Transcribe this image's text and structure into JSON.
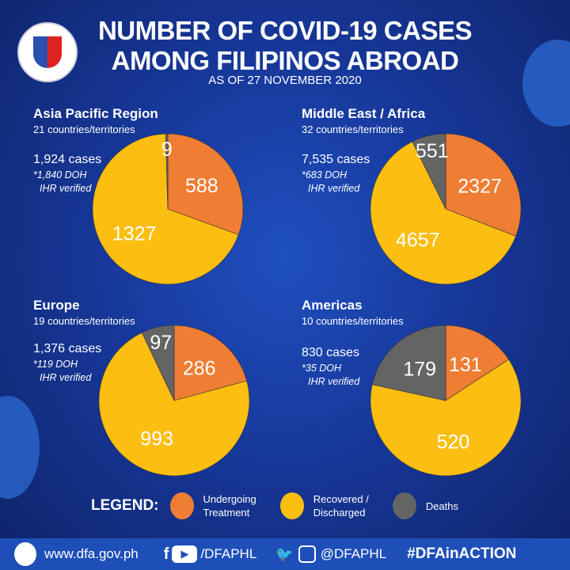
{
  "header": {
    "title_line1": "NUMBER OF  COVID-19 CASES",
    "title_line2": "AMONG FILIPINOS ABROAD",
    "subtitle": "AS OF 27 NOVEMBER 2020"
  },
  "colors": {
    "undergoing": "#ef7d33",
    "recovered": "#fdbe12",
    "deaths": "#646464"
  },
  "chart_data": [
    {
      "type": "pie",
      "title": "Asia Pacific Region",
      "subtitle": "21 countries/territories",
      "total_label": "1,924 cases",
      "note_line1": "*1,840 DOH",
      "note_line2": "IHR verified",
      "categories": [
        "Undergoing Treatment",
        "Recovered / Discharged",
        "Deaths"
      ],
      "values": [
        588,
        1327,
        9
      ],
      "labels": [
        "588",
        "1327",
        "9"
      ]
    },
    {
      "type": "pie",
      "title": "Middle East / Africa",
      "subtitle": "32 countries/territories",
      "total_label": "7,535 cases",
      "note_line1": "*683 DOH",
      "note_line2": "IHR verified",
      "categories": [
        "Undergoing Treatment",
        "Recovered / Discharged",
        "Deaths"
      ],
      "values": [
        2327,
        4657,
        551
      ],
      "labels": [
        "2327",
        "4657",
        "551"
      ]
    },
    {
      "type": "pie",
      "title": "Europe",
      "subtitle": "19 countries/territories",
      "total_label": "1,376 cases",
      "note_line1": "*119 DOH",
      "note_line2": "IHR verified",
      "categories": [
        "Undergoing Treatment",
        "Recovered / Discharged",
        "Deaths"
      ],
      "values": [
        286,
        993,
        97
      ],
      "labels": [
        "286",
        "993",
        "97"
      ]
    },
    {
      "type": "pie",
      "title": "Americas",
      "subtitle": "10 countries/territories",
      "total_label": "830 cases",
      "note_line1": "*35 DOH",
      "note_line2": "IHR verified",
      "categories": [
        "Undergoing Treatment",
        "Recovered / Discharged",
        "Deaths"
      ],
      "values": [
        131,
        520,
        179
      ],
      "labels": [
        "131",
        "520",
        "179"
      ]
    }
  ],
  "legend": {
    "title": "LEGEND:",
    "items": [
      {
        "label1": "Undergoing",
        "label2": "Treatment"
      },
      {
        "label1": "Recovered /",
        "label2": "Discharged"
      },
      {
        "label1": "Deaths",
        "label2": ""
      }
    ]
  },
  "footer": {
    "website": "www.dfa.gov.ph",
    "fb_yt_handle": "/DFAPHL",
    "tw_ig_handle": "@DFAPHL",
    "hashtag": "#DFAinACTION"
  }
}
